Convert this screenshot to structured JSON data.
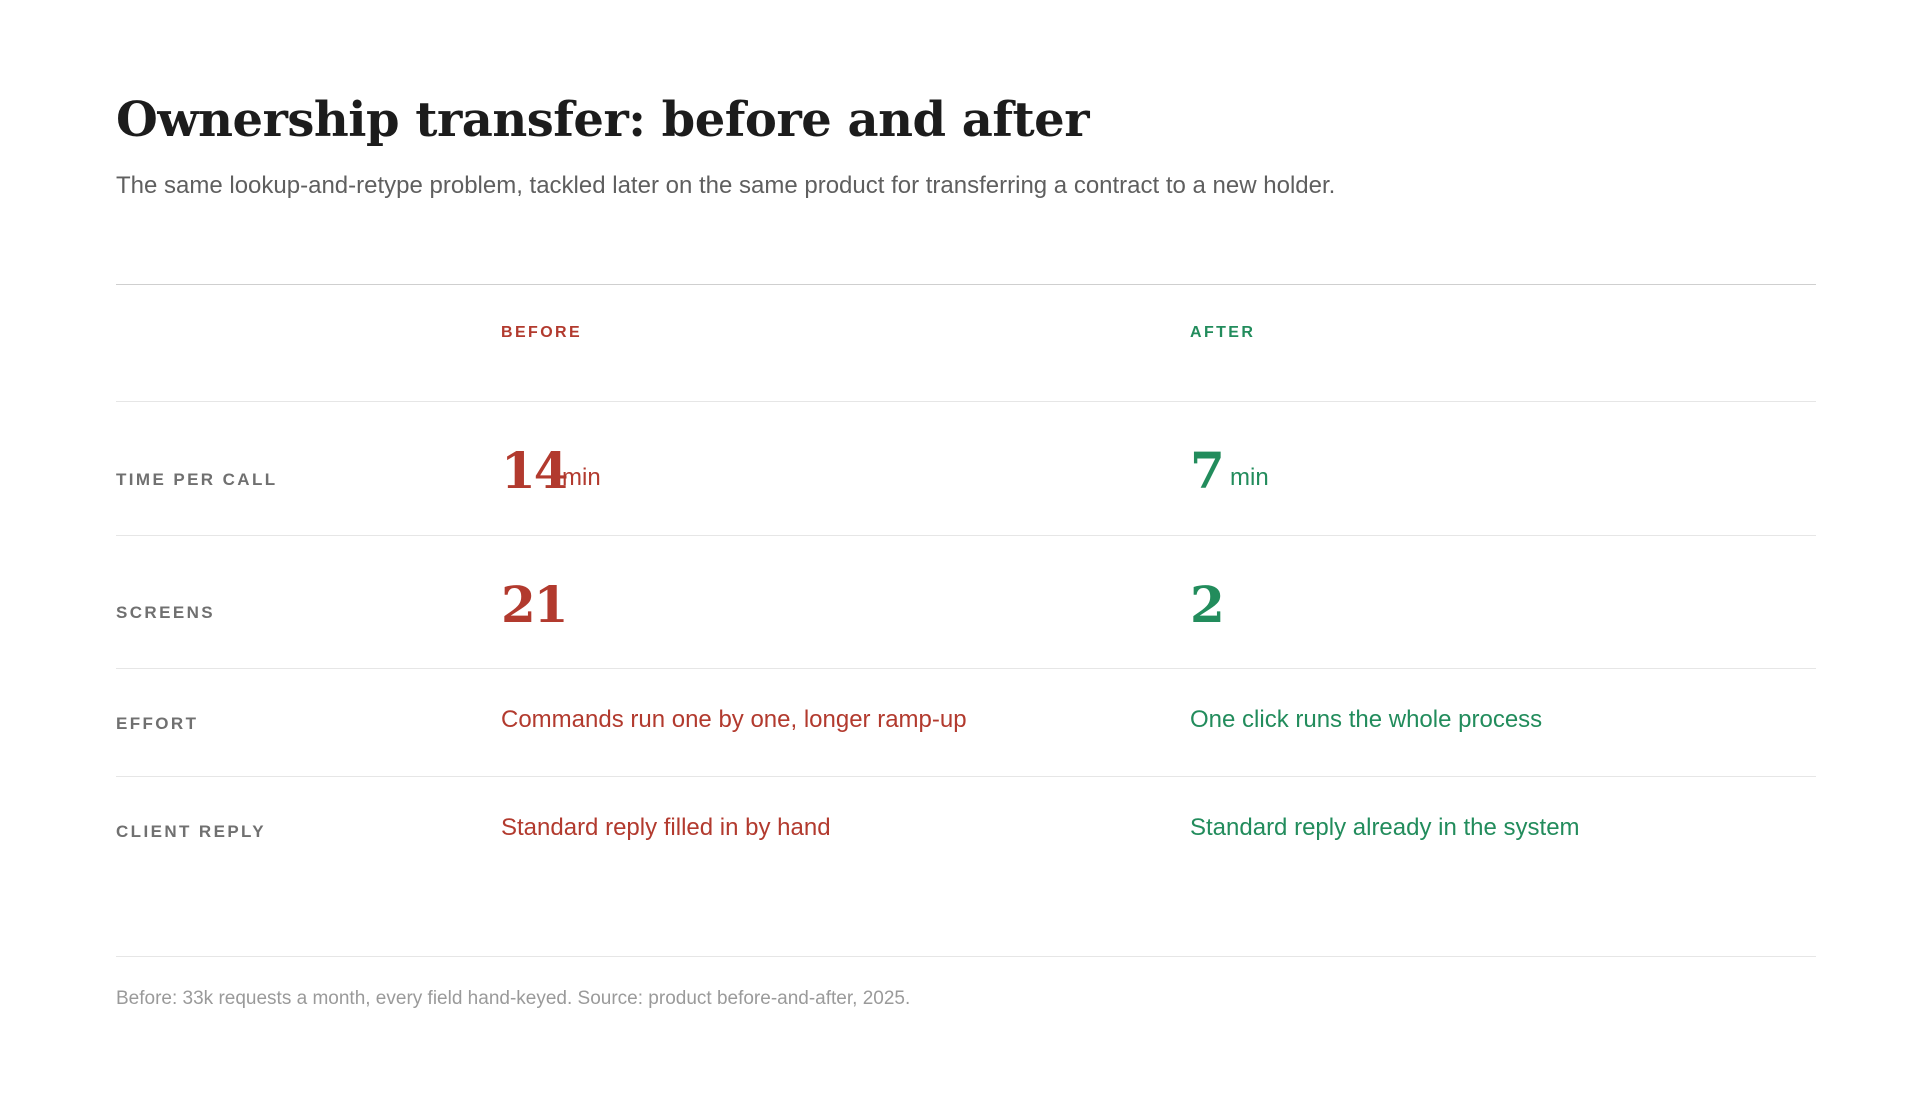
{
  "header": {
    "title": "Ownership transfer: before and after",
    "subtitle": "The same lookup-and-retype problem, tackled later on the same product for transferring a contract to a new holder."
  },
  "columns": {
    "before": "BEFORE",
    "after": "AFTER"
  },
  "rows": [
    {
      "label": "TIME PER CALL",
      "before_value": "14",
      "before_unit": "min",
      "after_value": "7",
      "after_unit": "min"
    },
    {
      "label": "SCREENS",
      "before_value": "21",
      "after_value": "2"
    },
    {
      "label": "EFFORT",
      "before_text": "Commands run one by one, longer ramp-up",
      "after_text": "One click runs the whole process"
    },
    {
      "label": "CLIENT REPLY",
      "before_text": "Standard reply filled in by hand",
      "after_text": "Standard reply already in the system"
    }
  ],
  "footnote": "Before: 33k requests a month, every field hand-keyed. Source: product before-and-after, 2025.",
  "colors": {
    "before": "#b23a2e",
    "after": "#228c5c"
  }
}
